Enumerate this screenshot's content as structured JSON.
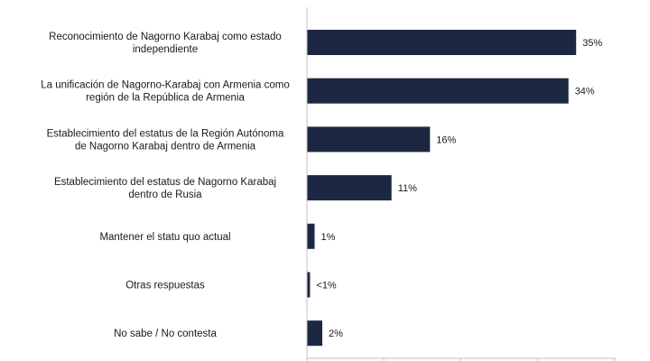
{
  "chart_data": {
    "type": "bar",
    "orientation": "horizontal",
    "categories": [
      [
        "Reconocimiento de Nagorno Karabaj como estado",
        "independiente"
      ],
      [
        "La unificación de Nagorno-Karabaj con Armenia como",
        "región de la República de Armenia"
      ],
      [
        "Establecimiento del estatus de la Región Autónoma",
        "de Nagorno Karabaj dentro de Armenia"
      ],
      [
        "Establecimiento del estatus de Nagorno Karabaj",
        "dentro de Rusia"
      ],
      [
        "Mantener el statu quo actual"
      ],
      [
        "Otras respuestas"
      ],
      [
        "No sabe / No contesta"
      ]
    ],
    "values": [
      35,
      34,
      16,
      11,
      1,
      0.4,
      2
    ],
    "data_labels": [
      "35%",
      "34%",
      "16%",
      "11%",
      "1%",
      "<1%",
      "2%"
    ],
    "xlim": [
      0,
      40
    ],
    "grid": false,
    "bar_color": "#1c2842",
    "axis_color": "#bfbfbf"
  }
}
